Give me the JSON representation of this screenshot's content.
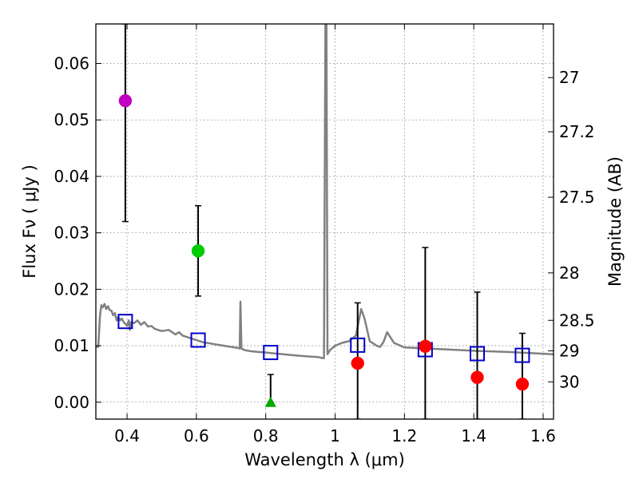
{
  "chart_data": {
    "type": "scatter",
    "xlabel": "Wavelength  λ (μm)",
    "ylabel": "Flux  Fν  ( μJy )",
    "ylabel_right": "Magnitude (AB)",
    "xlim": [
      0.31,
      1.63
    ],
    "ylim": [
      -0.003,
      0.067
    ],
    "grid": true,
    "x_ticks": [
      0.4,
      0.6,
      0.8,
      1.0,
      1.2,
      1.4,
      1.6
    ],
    "x_tick_labels": [
      "0.4",
      "0.6",
      "0.8",
      "1",
      "1.2",
      "1.4",
      "1.6"
    ],
    "y_ticks": [
      0.0,
      0.01,
      0.02,
      0.03,
      0.04,
      0.05,
      0.06
    ],
    "y_tick_labels": [
      "0.00",
      "0.01",
      "0.02",
      "0.03",
      "0.04",
      "0.05",
      "0.06"
    ],
    "mag_ticks": [
      {
        "label": "27",
        "flux": 0.0575
      },
      {
        "label": "27.2",
        "flux": 0.0479
      },
      {
        "label": "27.5",
        "flux": 0.0363
      },
      {
        "label": "28",
        "flux": 0.0229
      },
      {
        "label": "28.5",
        "flux": 0.0145
      },
      {
        "label": "29",
        "flux": 0.0091
      },
      {
        "label": "30",
        "flux": 0.0036
      }
    ],
    "series": [
      {
        "name": "model_spectrum",
        "kind": "line",
        "color": "#808080",
        "x": [
          0.31,
          0.317,
          0.322,
          0.326,
          0.33,
          0.335,
          0.34,
          0.345,
          0.35,
          0.355,
          0.36,
          0.365,
          0.37,
          0.375,
          0.38,
          0.385,
          0.39,
          0.395,
          0.4,
          0.405,
          0.408,
          0.412,
          0.42,
          0.43,
          0.44,
          0.45,
          0.46,
          0.47,
          0.48,
          0.5,
          0.52,
          0.54,
          0.55,
          0.56,
          0.58,
          0.6,
          0.62,
          0.64,
          0.66,
          0.68,
          0.7,
          0.72,
          0.725,
          0.727,
          0.73,
          0.733,
          0.74,
          0.76,
          0.8,
          0.85,
          0.9,
          0.95,
          0.965,
          0.968,
          0.972,
          0.975,
          0.978,
          0.985,
          1.0,
          1.02,
          1.04,
          1.06,
          1.075,
          1.085,
          1.1,
          1.11,
          1.12,
          1.13,
          1.14,
          1.15,
          1.17,
          1.2,
          1.3,
          1.4,
          1.5,
          1.63
        ],
        "y": [
          0.0098,
          0.0098,
          0.0153,
          0.0172,
          0.0168,
          0.0174,
          0.0165,
          0.017,
          0.0163,
          0.0162,
          0.0154,
          0.0158,
          0.0145,
          0.0151,
          0.0145,
          0.0148,
          0.0142,
          0.0139,
          0.0135,
          0.0145,
          0.0128,
          0.0142,
          0.014,
          0.0145,
          0.0137,
          0.0142,
          0.0134,
          0.0135,
          0.013,
          0.0126,
          0.0128,
          0.012,
          0.0124,
          0.0118,
          0.0114,
          0.011,
          0.0106,
          0.0104,
          0.0102,
          0.01,
          0.0098,
          0.0096,
          0.0095,
          0.0178,
          0.0095,
          0.0094,
          0.0092,
          0.009,
          0.0088,
          0.0085,
          0.0082,
          0.008,
          0.0078,
          0.0078,
          0.067,
          0.067,
          0.0085,
          0.0092,
          0.01,
          0.0105,
          0.0108,
          0.0118,
          0.0165,
          0.0148,
          0.0108,
          0.0104,
          0.01,
          0.0098,
          0.0107,
          0.0124,
          0.0105,
          0.0097,
          0.0094,
          0.0091,
          0.0089,
          0.0085
        ]
      },
      {
        "name": "model_photometry",
        "kind": "open-square",
        "color": "#0000cc",
        "x": [
          0.395,
          0.605,
          0.814,
          1.065,
          1.26,
          1.41,
          1.54
        ],
        "y": [
          0.0143,
          0.011,
          0.0088,
          0.0101,
          0.0093,
          0.0086,
          0.0083
        ]
      },
      {
        "name": "purple_point",
        "kind": "circle",
        "color": "#bf00bf",
        "x": [
          0.395
        ],
        "y": [
          0.0534
        ],
        "err_lo": [
          0.032
        ],
        "err_hi": [
          0.067
        ]
      },
      {
        "name": "green_point",
        "kind": "circle",
        "color": "#00cc00",
        "x": [
          0.605
        ],
        "y": [
          0.0268
        ],
        "err_lo": [
          0.0188
        ],
        "err_hi": [
          0.0348
        ]
      },
      {
        "name": "green_upper_limit",
        "kind": "triangle",
        "color": "#00aa00",
        "x": [
          0.814
        ],
        "y": [
          0.0
        ],
        "err_lo": [
          0.0
        ],
        "err_hi": [
          0.0049
        ]
      },
      {
        "name": "red_points",
        "kind": "circle",
        "color": "#ff0000",
        "x": [
          1.065,
          1.26,
          1.41,
          1.54
        ],
        "y": [
          0.0069,
          0.0099,
          0.0044,
          0.0032
        ],
        "err_lo": [
          -0.003,
          -0.003,
          -0.003,
          -0.003
        ],
        "err_hi": [
          0.0176,
          0.0274,
          0.0195,
          0.0122
        ]
      }
    ]
  }
}
